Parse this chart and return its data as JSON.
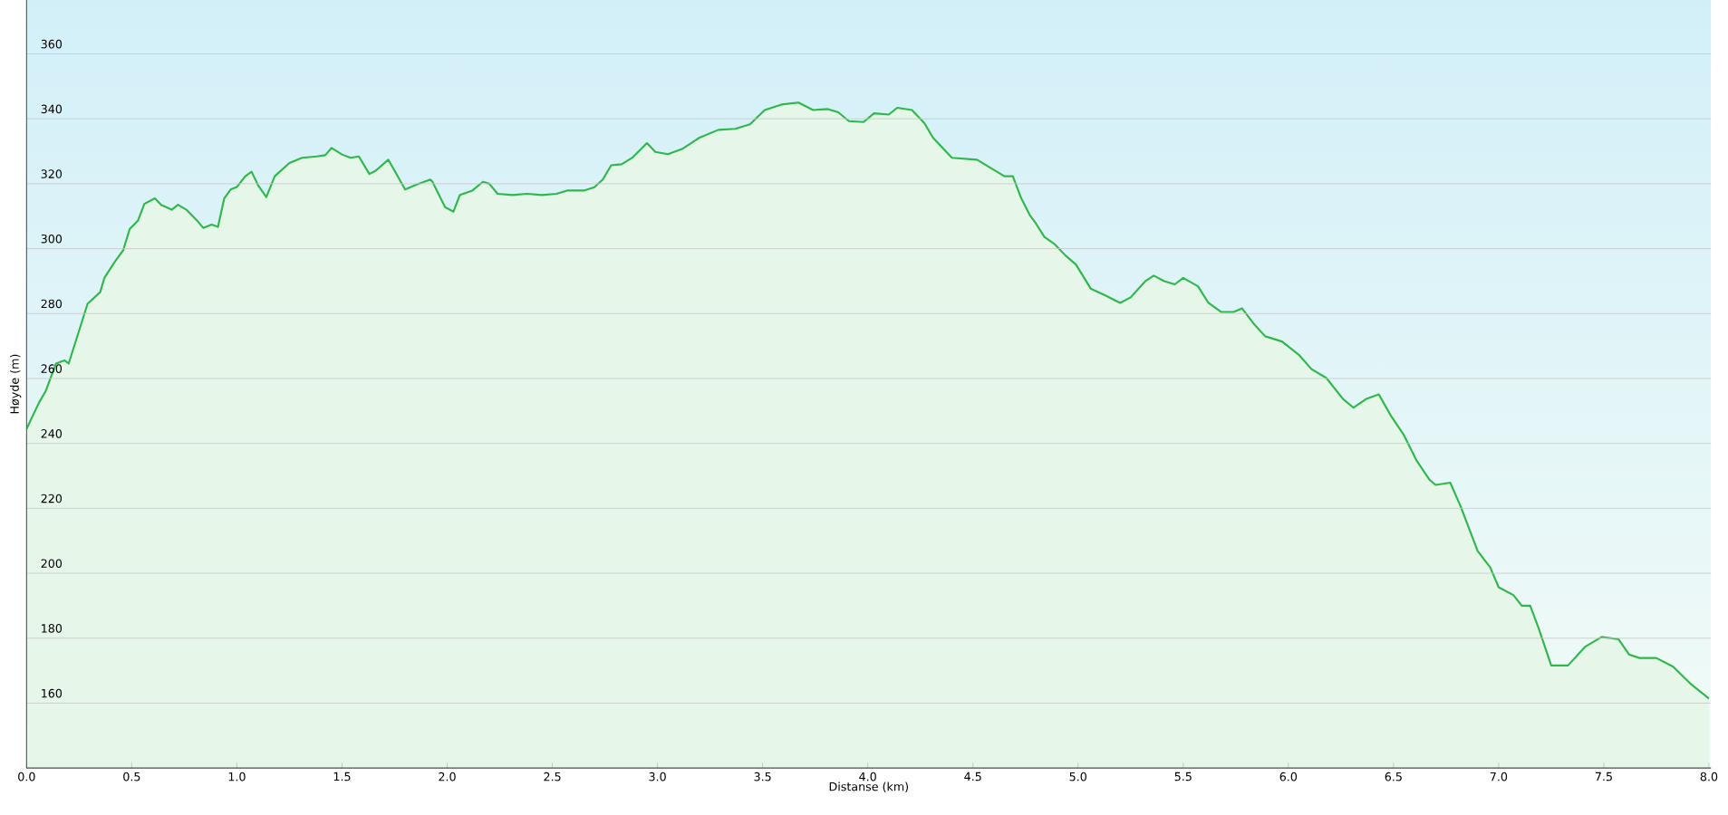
{
  "chart_data": {
    "type": "area",
    "xlabel": "Distanse  (km)",
    "ylabel": "Høyde (m)",
    "xlim": [
      0,
      8.01
    ],
    "ylim": [
      140,
      376.6
    ],
    "xticks": [
      {
        "value": 0,
        "label": "0.0"
      },
      {
        "value": 0.5,
        "label": "0.5"
      },
      {
        "value": 1,
        "label": "1.0"
      },
      {
        "value": 1.5,
        "label": "1.5"
      },
      {
        "value": 2,
        "label": "2.0"
      },
      {
        "value": 2.5,
        "label": "2.5"
      },
      {
        "value": 3,
        "label": "3.0"
      },
      {
        "value": 3.5,
        "label": "3.5"
      },
      {
        "value": 4,
        "label": "4.0"
      },
      {
        "value": 4.5,
        "label": "4.5"
      },
      {
        "value": 5,
        "label": "5.0"
      },
      {
        "value": 5.5,
        "label": "5.5"
      },
      {
        "value": 6,
        "label": "6.0"
      },
      {
        "value": 6.5,
        "label": "6.5"
      },
      {
        "value": 7,
        "label": "7.0"
      },
      {
        "value": 7.5,
        "label": "7.5"
      },
      {
        "value": 8,
        "label": "8.0"
      }
    ],
    "yticks": [
      160,
      180,
      200,
      220,
      240,
      260,
      280,
      300,
      320,
      340,
      360
    ],
    "grid": "y",
    "x": [
      0,
      0.06,
      0.09,
      0.14,
      0.18,
      0.2,
      0.29,
      0.35,
      0.37,
      0.42,
      0.46,
      0.49,
      0.53,
      0.56,
      0.61,
      0.64,
      0.69,
      0.72,
      0.76,
      0.81,
      0.84,
      0.88,
      0.91,
      0.94,
      0.97,
      1.0,
      1.04,
      1.07,
      1.1,
      1.14,
      1.18,
      1.25,
      1.31,
      1.38,
      1.42,
      1.45,
      1.5,
      1.54,
      1.58,
      1.63,
      1.66,
      1.72,
      1.75,
      1.8,
      1.85,
      1.92,
      1.93,
      1.99,
      2.03,
      2.06,
      2.12,
      2.17,
      2.2,
      2.24,
      2.31,
      2.38,
      2.45,
      2.52,
      2.57,
      2.65,
      2.7,
      2.74,
      2.78,
      2.83,
      2.88,
      2.95,
      2.99,
      3.05,
      3.12,
      3.2,
      3.29,
      3.37,
      3.44,
      3.51,
      3.59,
      3.67,
      3.74,
      3.81,
      3.86,
      3.91,
      3.98,
      4.03,
      4.1,
      4.14,
      4.21,
      4.27,
      4.31,
      4.4,
      4.52,
      4.58,
      4.65,
      4.69,
      4.73,
      4.77,
      4.8,
      4.84,
      4.89,
      4.94,
      4.99,
      5.06,
      5.13,
      5.2,
      5.25,
      5.32,
      5.36,
      5.41,
      5.46,
      5.5,
      5.57,
      5.62,
      5.68,
      5.74,
      5.78,
      5.84,
      5.89,
      5.97,
      6.05,
      6.11,
      6.18,
      6.26,
      6.31,
      6.37,
      6.43,
      6.49,
      6.55,
      6.61,
      6.67,
      6.7,
      6.77,
      6.82,
      6.9,
      6.96,
      7.0,
      7.07,
      7.11,
      7.15,
      7.19,
      7.25,
      7.33,
      7.41,
      7.49,
      7.57,
      7.62,
      7.67,
      7.75,
      7.83,
      7.91,
      8.0
    ],
    "series": [
      {
        "color": "#2eb84b",
        "values": [
          244.5,
          252.7,
          256,
          264.6,
          265.6,
          264.6,
          283,
          286.6,
          291,
          296,
          299.6,
          306,
          308.7,
          313.8,
          315.5,
          313.5,
          312,
          313.5,
          312,
          308.7,
          306.4,
          307.4,
          306.7,
          315.5,
          318.2,
          319,
          322.3,
          323.7,
          319.6,
          315.9,
          322.3,
          326.4,
          328,
          328.4,
          328.8,
          331,
          329,
          328,
          328.4,
          323,
          324,
          327.4,
          324,
          318.2,
          319.6,
          321.3,
          320.6,
          312.8,
          311.4,
          316.5,
          317.9,
          320.6,
          320,
          316.9,
          316.5,
          316.9,
          316.5,
          316.9,
          317.9,
          317.9,
          318.9,
          321.3,
          325.7,
          326,
          328,
          332.5,
          329.8,
          329.1,
          330.8,
          334.2,
          336.6,
          336.9,
          338.3,
          342.7,
          344.4,
          345,
          342.7,
          343,
          342,
          339.3,
          339,
          341.7,
          341.3,
          343.4,
          342.7,
          338.6,
          334.2,
          328,
          327.4,
          325,
          322.3,
          322.3,
          315.5,
          310.4,
          307.7,
          303.6,
          301.3,
          297.9,
          295.1,
          287.7,
          285.6,
          283.3,
          285,
          290,
          291.7,
          290,
          289,
          291,
          288.4,
          283.3,
          280.5,
          280.5,
          281.6,
          276.5,
          273,
          271.4,
          267.3,
          262.9,
          260.2,
          253.7,
          251,
          253.7,
          255.1,
          248.3,
          242.5,
          234.7,
          228.9,
          227.2,
          227.9,
          220.5,
          206.9,
          201.8,
          195.7,
          193.3,
          190,
          190,
          183.1,
          171.6,
          171.6,
          177.3,
          180.4,
          179.7,
          175,
          173.9,
          173.9,
          171.2,
          166.1,
          161.4
        ]
      }
    ]
  }
}
